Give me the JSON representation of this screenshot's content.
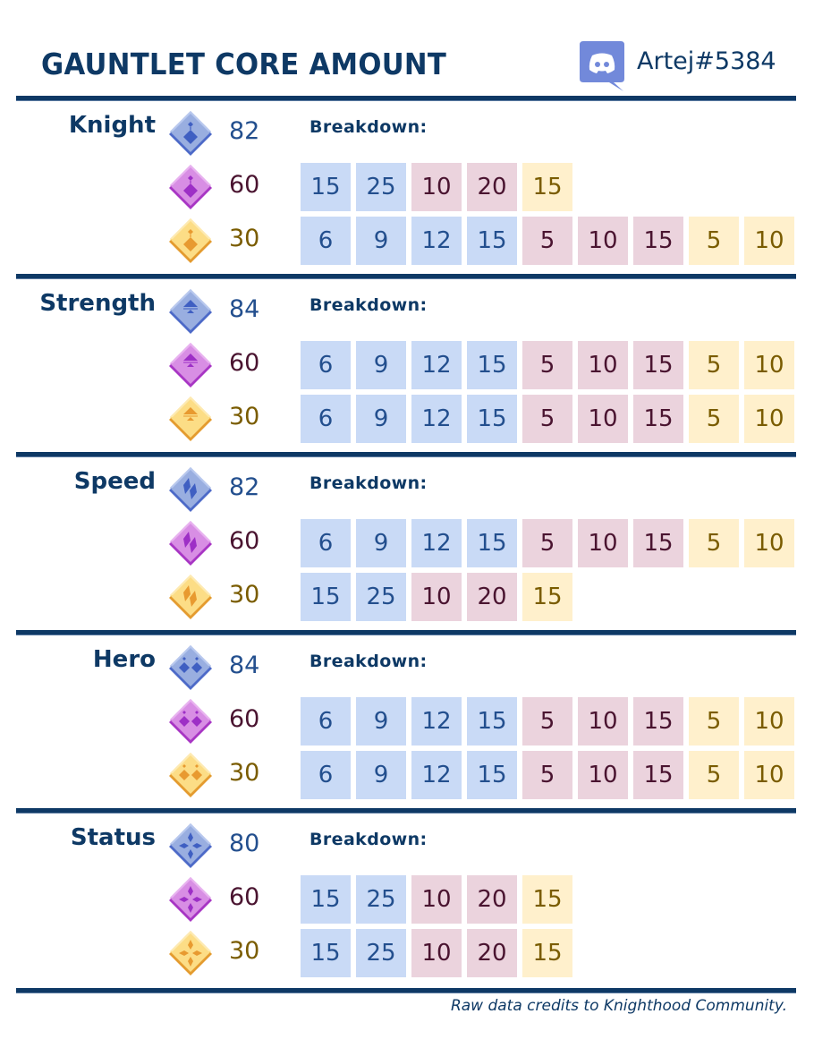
{
  "header": {
    "title": "GAUNTLET CORE AMOUNT",
    "discord_handle": "Artej#5384",
    "discord_icon": "discord-icon"
  },
  "breakdown_label": "Breakdown:",
  "colors": {
    "navy": "#0e3965",
    "blue_cell": "#c9daf6",
    "purple_cell": "#ebd3dd",
    "gold_cell": "#fff0cc",
    "blue_text": "#234f8e",
    "purple_text": "#4a1430",
    "gold_text": "#7a5c00"
  },
  "sections": [
    {
      "name": "Knight",
      "icon": "knight-core-icon",
      "tiers": [
        {
          "tier": "blue",
          "amount": "82"
        },
        {
          "tier": "purple",
          "amount": "60",
          "breakdown": [
            {
              "v": "15",
              "c": "blue"
            },
            {
              "v": "25",
              "c": "blue"
            },
            {
              "v": "10",
              "c": "purple"
            },
            {
              "v": "20",
              "c": "purple"
            },
            {
              "v": "15",
              "c": "gold"
            }
          ]
        },
        {
          "tier": "gold",
          "amount": "30",
          "breakdown": [
            {
              "v": "6",
              "c": "blue"
            },
            {
              "v": "9",
              "c": "blue"
            },
            {
              "v": "12",
              "c": "blue"
            },
            {
              "v": "15",
              "c": "blue"
            },
            {
              "v": "5",
              "c": "purple"
            },
            {
              "v": "10",
              "c": "purple"
            },
            {
              "v": "15",
              "c": "purple"
            },
            {
              "v": "5",
              "c": "gold"
            },
            {
              "v": "10",
              "c": "gold"
            }
          ]
        }
      ]
    },
    {
      "name": "Strength",
      "icon": "strength-core-icon",
      "tiers": [
        {
          "tier": "blue",
          "amount": "84"
        },
        {
          "tier": "purple",
          "amount": "60",
          "breakdown": [
            {
              "v": "6",
              "c": "blue"
            },
            {
              "v": "9",
              "c": "blue"
            },
            {
              "v": "12",
              "c": "blue"
            },
            {
              "v": "15",
              "c": "blue"
            },
            {
              "v": "5",
              "c": "purple"
            },
            {
              "v": "10",
              "c": "purple"
            },
            {
              "v": "15",
              "c": "purple"
            },
            {
              "v": "5",
              "c": "gold"
            },
            {
              "v": "10",
              "c": "gold"
            }
          ]
        },
        {
          "tier": "gold",
          "amount": "30",
          "breakdown": [
            {
              "v": "6",
              "c": "blue"
            },
            {
              "v": "9",
              "c": "blue"
            },
            {
              "v": "12",
              "c": "blue"
            },
            {
              "v": "15",
              "c": "blue"
            },
            {
              "v": "5",
              "c": "purple"
            },
            {
              "v": "10",
              "c": "purple"
            },
            {
              "v": "15",
              "c": "purple"
            },
            {
              "v": "5",
              "c": "gold"
            },
            {
              "v": "10",
              "c": "gold"
            }
          ]
        }
      ]
    },
    {
      "name": "Speed",
      "icon": "speed-core-icon",
      "tiers": [
        {
          "tier": "blue",
          "amount": "82"
        },
        {
          "tier": "purple",
          "amount": "60",
          "breakdown": [
            {
              "v": "6",
              "c": "blue"
            },
            {
              "v": "9",
              "c": "blue"
            },
            {
              "v": "12",
              "c": "blue"
            },
            {
              "v": "15",
              "c": "blue"
            },
            {
              "v": "5",
              "c": "purple"
            },
            {
              "v": "10",
              "c": "purple"
            },
            {
              "v": "15",
              "c": "purple"
            },
            {
              "v": "5",
              "c": "gold"
            },
            {
              "v": "10",
              "c": "gold"
            }
          ]
        },
        {
          "tier": "gold",
          "amount": "30",
          "breakdown": [
            {
              "v": "15",
              "c": "blue"
            },
            {
              "v": "25",
              "c": "blue"
            },
            {
              "v": "10",
              "c": "purple"
            },
            {
              "v": "20",
              "c": "purple"
            },
            {
              "v": "15",
              "c": "gold"
            }
          ]
        }
      ]
    },
    {
      "name": "Hero",
      "icon": "hero-core-icon",
      "tiers": [
        {
          "tier": "blue",
          "amount": "84"
        },
        {
          "tier": "purple",
          "amount": "60",
          "breakdown": [
            {
              "v": "6",
              "c": "blue"
            },
            {
              "v": "9",
              "c": "blue"
            },
            {
              "v": "12",
              "c": "blue"
            },
            {
              "v": "15",
              "c": "blue"
            },
            {
              "v": "5",
              "c": "purple"
            },
            {
              "v": "10",
              "c": "purple"
            },
            {
              "v": "15",
              "c": "purple"
            },
            {
              "v": "5",
              "c": "gold"
            },
            {
              "v": "10",
              "c": "gold"
            }
          ]
        },
        {
          "tier": "gold",
          "amount": "30",
          "breakdown": [
            {
              "v": "6",
              "c": "blue"
            },
            {
              "v": "9",
              "c": "blue"
            },
            {
              "v": "12",
              "c": "blue"
            },
            {
              "v": "15",
              "c": "blue"
            },
            {
              "v": "5",
              "c": "purple"
            },
            {
              "v": "10",
              "c": "purple"
            },
            {
              "v": "15",
              "c": "purple"
            },
            {
              "v": "5",
              "c": "gold"
            },
            {
              "v": "10",
              "c": "gold"
            }
          ]
        }
      ]
    },
    {
      "name": "Status",
      "icon": "status-core-icon",
      "tiers": [
        {
          "tier": "blue",
          "amount": "80"
        },
        {
          "tier": "purple",
          "amount": "60",
          "breakdown": [
            {
              "v": "15",
              "c": "blue"
            },
            {
              "v": "25",
              "c": "blue"
            },
            {
              "v": "10",
              "c": "purple"
            },
            {
              "v": "20",
              "c": "purple"
            },
            {
              "v": "15",
              "c": "gold"
            }
          ]
        },
        {
          "tier": "gold",
          "amount": "30",
          "breakdown": [
            {
              "v": "15",
              "c": "blue"
            },
            {
              "v": "25",
              "c": "blue"
            },
            {
              "v": "10",
              "c": "purple"
            },
            {
              "v": "20",
              "c": "purple"
            },
            {
              "v": "15",
              "c": "gold"
            }
          ]
        }
      ]
    }
  ],
  "footer": {
    "credits": "Raw data credits to Knighthood Community."
  }
}
